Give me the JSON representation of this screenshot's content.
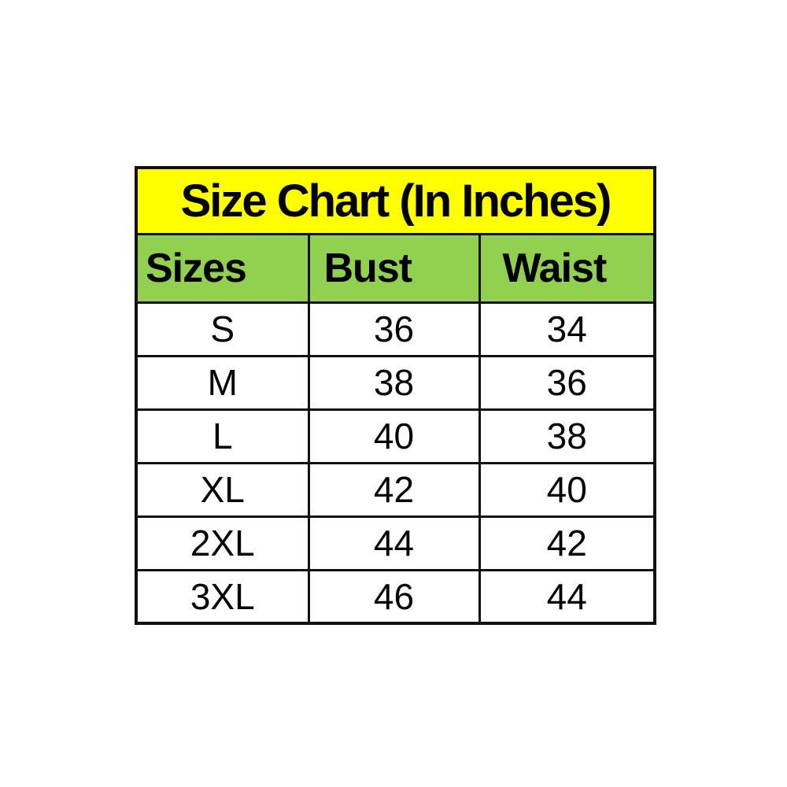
{
  "chart_data": {
    "type": "table",
    "title": "Size Chart (In Inches)",
    "columns": [
      "Sizes",
      "Bust",
      "Waist"
    ],
    "rows": [
      [
        "S",
        "36",
        "34"
      ],
      [
        "M",
        "38",
        "36"
      ],
      [
        "L",
        "40",
        "38"
      ],
      [
        "XL",
        "42",
        "40"
      ],
      [
        "2XL",
        "44",
        "42"
      ],
      [
        "3XL",
        "46",
        "44"
      ]
    ],
    "units": "inches"
  },
  "colors": {
    "title_bg": "#ffff00",
    "header_bg": "#92d050",
    "row_bg": "#ffffff",
    "border": "#111111",
    "text": "#000000",
    "page_bg": "#ffffff"
  }
}
